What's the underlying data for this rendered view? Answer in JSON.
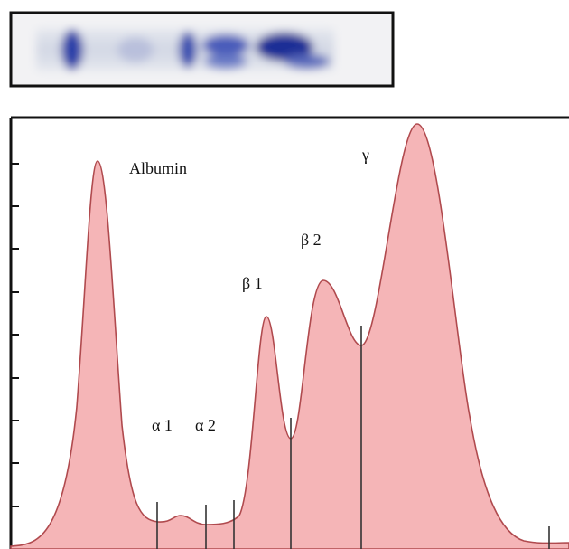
{
  "labels": {
    "albumin": "Albumin",
    "alpha1": "α 1",
    "alpha2": "α 2",
    "beta1": "β 1",
    "beta2": "β 2",
    "gamma": "γ"
  }
}
